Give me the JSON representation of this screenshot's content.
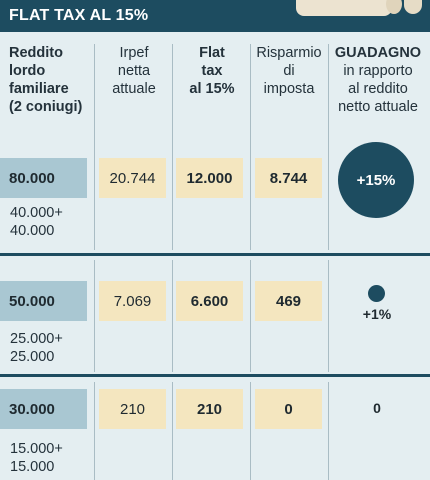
{
  "header": {
    "title": "FLAT TAX AL 15%"
  },
  "colors": {
    "header": "#1d4c60",
    "first_col": "#a9c7d2",
    "cream": "#f4e6bf",
    "background": "#e4eef1"
  },
  "columns": {
    "reddito": [
      "Reddito",
      "lordo",
      "familiare",
      "(2 coniugi)"
    ],
    "irpef": [
      "Irpef",
      "netta",
      "attuale"
    ],
    "flat": [
      "Flat",
      "tax",
      "al 15%"
    ],
    "risparmio": [
      "Risparmio",
      "di",
      "imposta"
    ],
    "guadagno": [
      "GUADAGNO",
      "in rapporto",
      "al reddito",
      "netto attuale"
    ]
  },
  "rows": [
    {
      "reddito": "80.000",
      "split": [
        "40.000+",
        "40.000"
      ],
      "irpef": "20.744",
      "flat": "12.000",
      "risparmio": "8.744",
      "guadagno": "+15%",
      "gain_level": 15
    },
    {
      "reddito": "50.000",
      "split": [
        "25.000+",
        "25.000"
      ],
      "irpef": "7.069",
      "flat": "6.600",
      "risparmio": "469",
      "guadagno": "+1%",
      "gain_level": 1
    },
    {
      "reddito": "30.000",
      "split": [
        "15.000+",
        "15.000"
      ],
      "irpef": "210",
      "flat": "210",
      "risparmio": "0",
      "guadagno": "0",
      "gain_level": 0
    }
  ]
}
